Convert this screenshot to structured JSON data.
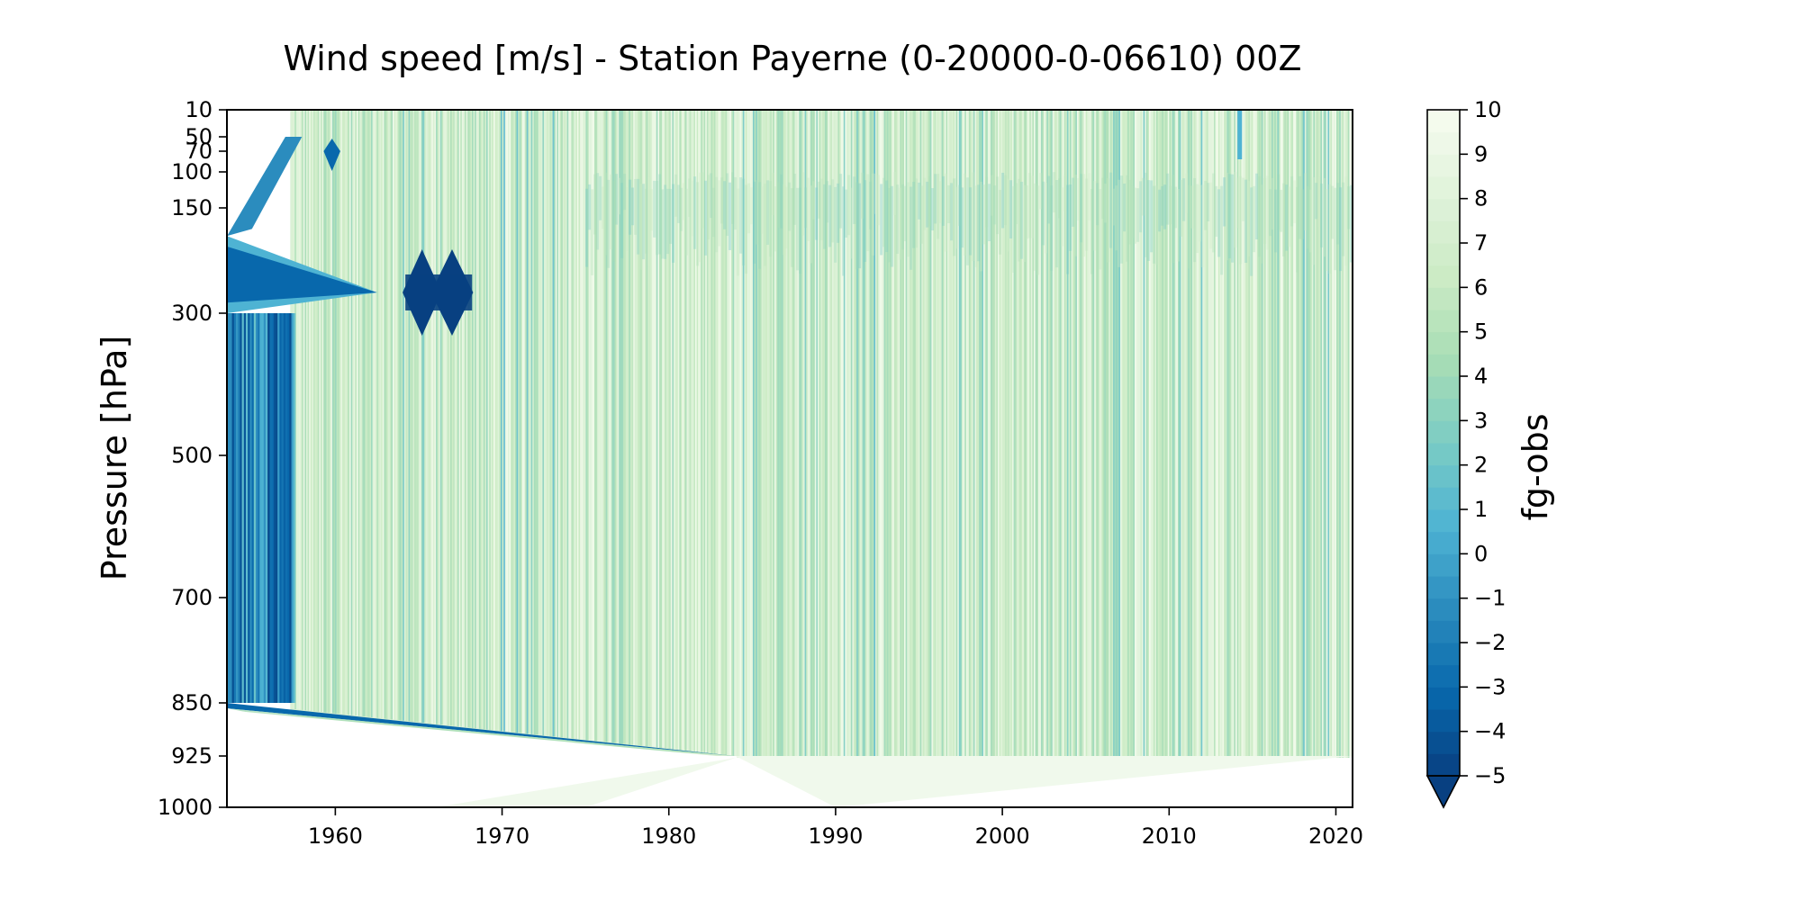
{
  "chart_data": {
    "type": "heatmap",
    "title": "Wind speed [m/s] - Station Payerne (0-20000-0-06610) 00Z",
    "xlabel": "",
    "ylabel": "Pressure [hPa]",
    "colorbar_label": "fg-obs",
    "x_ticks": [
      1960,
      1970,
      1980,
      1990,
      2000,
      2010,
      2020
    ],
    "xlim": [
      1953.5,
      2021
    ],
    "y_ticks": [
      10,
      50,
      70,
      100,
      150,
      300,
      500,
      700,
      850,
      925,
      1000
    ],
    "y_tick_labels": [
      "10",
      "50",
      "70",
      "100",
      "150",
      "300",
      "500",
      "700",
      "850",
      "925",
      "1000"
    ],
    "ylim": [
      10,
      1000
    ],
    "y_axis_inverted": true,
    "colorbar_ticks": [
      10,
      9,
      8,
      7,
      6,
      5,
      4,
      3,
      2,
      1,
      0,
      -1,
      -2,
      -3,
      -4,
      -5
    ],
    "colorbar_tick_labels": [
      "10",
      "9",
      "8",
      "7",
      "6",
      "5",
      "4",
      "3",
      "2",
      "1",
      "0",
      "−1",
      "−2",
      "−3",
      "−4",
      "−5"
    ],
    "colorbar_range": [
      -5,
      10
    ],
    "colorbar_extend": "min",
    "colormap": "GnBu_r",
    "colormap_colors": [
      "#084081",
      "#0868ac",
      "#2b8cbe",
      "#4eb3d3",
      "#7bccc4",
      "#a8ddb5",
      "#ccebc5",
      "#e0f3db",
      "#f7fcf0"
    ],
    "grid": false,
    "legend": "none"
  }
}
